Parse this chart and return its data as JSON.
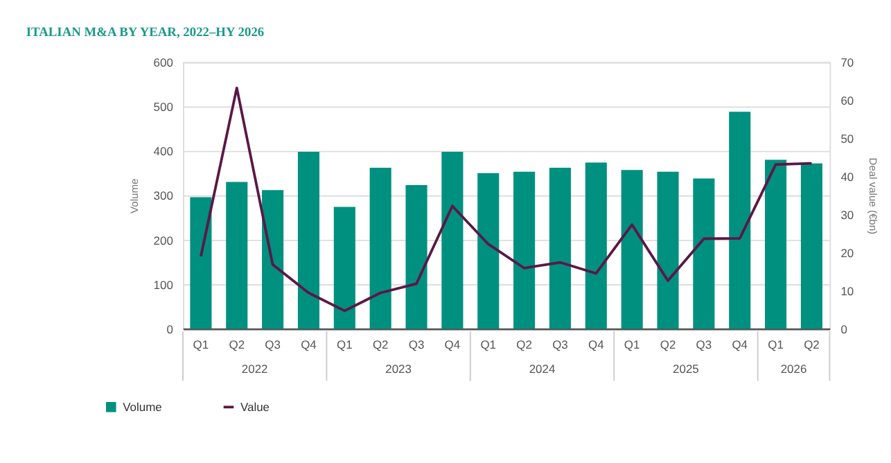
{
  "chart_data": {
    "type": "bar",
    "title": "ITALIAN M&A BY YEAR, 2022–HY 2026",
    "ylabel": "Volume",
    "y2label": "Deal value (€bn)",
    "categories": [
      "Q1",
      "Q2",
      "Q3",
      "Q4",
      "Q1",
      "Q2",
      "Q3",
      "Q4",
      "Q1",
      "Q2",
      "Q3",
      "Q4",
      "Q1",
      "Q2",
      "Q3",
      "Q4",
      "Q1",
      "Q2"
    ],
    "annotations": [
      "2022",
      "2023",
      "2024",
      "2025",
      "2026"
    ],
    "series": [
      {
        "name": "Volume",
        "color": "#009080",
        "values": [
          296,
          330,
          312,
          398,
          274,
          362,
          323,
          398,
          350,
          353,
          362,
          374,
          357,
          353,
          338,
          488,
          380,
          372
        ]
      },
      {
        "name": "Value",
        "type": "line",
        "axis": "y2",
        "color": "#5a1846",
        "values": [
          19,
          63.2,
          16.8,
          9.4,
          4.7,
          9.4,
          11.8,
          32.2,
          22.2,
          15.9,
          17.4,
          14.5,
          27.3,
          12.6,
          23.6,
          23.7,
          43.1,
          43.4
        ]
      }
    ],
    "ylim": [
      0,
      600
    ],
    "yticks": [
      0,
      100,
      200,
      300,
      400,
      500,
      600
    ],
    "y2lim": [
      0,
      70
    ],
    "y2ticks": [
      0,
      10,
      20,
      30,
      40,
      50,
      60,
      70
    ],
    "grid": "y",
    "legend": "bottom left",
    "marker": "none",
    "line_style": "solid"
  }
}
